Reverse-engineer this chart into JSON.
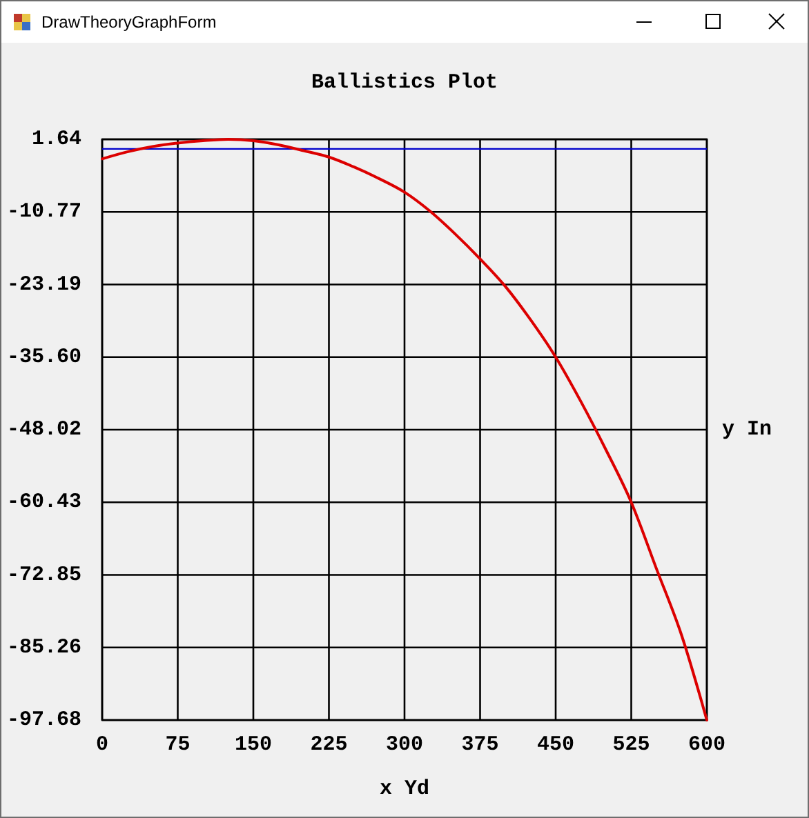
{
  "chart_data": {
    "type": "line",
    "title": "Ballistics Plot",
    "xlabel": "x Yd",
    "ylabel": "y In",
    "annotations": [
      "DrawTheoryGraphForm"
    ],
    "x": [
      0,
      25,
      50,
      75,
      100,
      125,
      150,
      175,
      200,
      225,
      250,
      275,
      300,
      325,
      350,
      375,
      400,
      425,
      450,
      475,
      500,
      525,
      550,
      575,
      600
    ],
    "values": [
      -1.7,
      -0.5,
      0.4,
      1.0,
      1.4,
      1.64,
      1.4,
      0.7,
      -0.3,
      -1.4,
      -3.1,
      -5.1,
      -7.4,
      -10.6,
      -14.5,
      -18.8,
      -23.5,
      -29.2,
      -35.6,
      -43.2,
      -51.5,
      -60.43,
      -71.8,
      -83.2,
      -97.68
    ],
    "color": "#dc0000",
    "xlim": [
      0,
      600
    ],
    "xticks": [
      0,
      75,
      150,
      225,
      300,
      375,
      450,
      525,
      600
    ],
    "ylim": [
      -97.68,
      1.64
    ],
    "yticks": [
      1.64,
      -10.77,
      -23.19,
      {
        "value": -35.6,
        "label": "-35.60"
      },
      -48.02,
      -60.43,
      -72.85,
      -85.26,
      -97.68
    ],
    "ref_lines": [
      {
        "axis": "y",
        "value": 0,
        "color": "#0000cc"
      }
    ],
    "grid": true
  }
}
